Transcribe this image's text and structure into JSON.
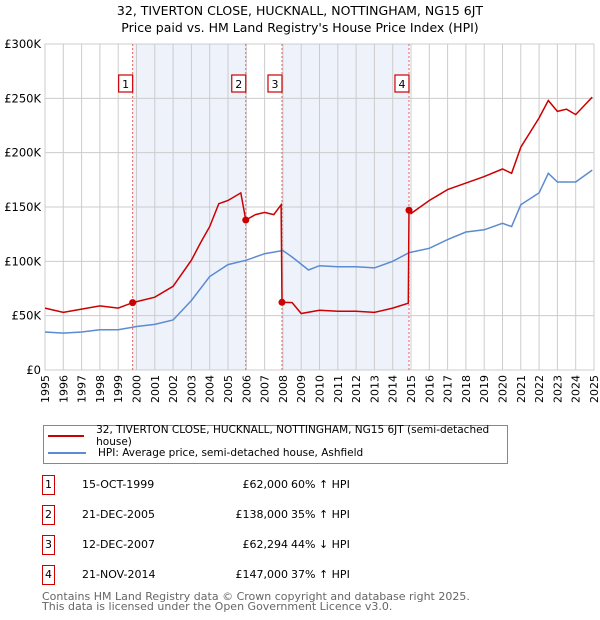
{
  "chart_data": {
    "type": "line",
    "title": "32, TIVERTON CLOSE, HUCKNALL, NOTTINGHAM, NG15 6JT",
    "subtitle": "Price paid vs. HM Land Registry's House Price Index (HPI)",
    "xlim": [
      1995,
      2025
    ],
    "ylim": [
      0,
      300000
    ],
    "x_ticks": [
      "1995",
      "1996",
      "1997",
      "1998",
      "1999",
      "2000",
      "2001",
      "2002",
      "2003",
      "2004",
      "2005",
      "2006",
      "2007",
      "2008",
      "2009",
      "2010",
      "2011",
      "2012",
      "2013",
      "2014",
      "2015",
      "2016",
      "2017",
      "2018",
      "2019",
      "2020",
      "2021",
      "2022",
      "2023",
      "2024",
      "2025"
    ],
    "y_ticks": [
      {
        "v": 0,
        "label": "£0"
      },
      {
        "v": 50000,
        "label": "£50K"
      },
      {
        "v": 100000,
        "label": "£100K"
      },
      {
        "v": 150000,
        "label": "£150K"
      },
      {
        "v": 200000,
        "label": "£200K"
      },
      {
        "v": 250000,
        "label": "£250K"
      },
      {
        "v": 300000,
        "label": "£300K"
      }
    ],
    "grid": true,
    "series": [
      {
        "name": "32, TIVERTON CLOSE, HUCKNALL, NOTTINGHAM, NG15 6JT (semi-detached house)",
        "color": "#cc0000",
        "x": [
          1995,
          1996,
          1997,
          1998,
          1999,
          1999.79,
          2001,
          2002,
          2003,
          2003.5,
          2004,
          2004.5,
          2005,
          2005.7,
          2005.97,
          2006.5,
          2007,
          2007.5,
          2007.9,
          2007.95,
          2008.5,
          2009,
          2010,
          2011,
          2012,
          2013,
          2014,
          2014.85,
          2014.89,
          2015,
          2016,
          2017,
          2018,
          2019,
          2020,
          2020.5,
          2021,
          2022,
          2022.5,
          2023,
          2023.5,
          2024,
          2024.9
        ],
        "y": [
          57000,
          53000,
          56000,
          59000,
          57000,
          62000,
          67000,
          77000,
          101000,
          117000,
          132000,
          153000,
          156000,
          163000,
          138000,
          143000,
          145000,
          143000,
          152000,
          62294,
          62000,
          52000,
          55000,
          54000,
          54000,
          53000,
          57000,
          61500,
          147000,
          144000,
          156000,
          166000,
          172000,
          178000,
          185000,
          181000,
          205000,
          232000,
          248000,
          238000,
          240000,
          235000,
          251000
        ]
      },
      {
        "name": "HPI: Average price, semi-detached house, Ashfield",
        "color": "#5b8bd0",
        "x": [
          1995,
          1996,
          1997,
          1998,
          1999,
          2000,
          2001,
          2002,
          2003,
          2004,
          2005,
          2006,
          2007,
          2008,
          2008.5,
          2009.4,
          2010,
          2011,
          2012,
          2013,
          2014,
          2014.9,
          2016,
          2017,
          2018,
          2019,
          2020,
          2020.5,
          2021,
          2022,
          2022.5,
          2023,
          2024,
          2024.9
        ],
        "y": [
          35000,
          34000,
          35000,
          37000,
          37000,
          40000,
          42000,
          46000,
          64000,
          86000,
          97000,
          101000,
          107000,
          110000,
          104000,
          92000,
          96000,
          95000,
          95000,
          94000,
          100000,
          108000,
          112000,
          120000,
          127000,
          129000,
          135000,
          132000,
          152000,
          163000,
          181000,
          173000,
          173000,
          184000
        ]
      }
    ],
    "sales": [
      {
        "n": "1",
        "x": 1999.79,
        "y": 62000
      },
      {
        "n": "2",
        "x": 2005.97,
        "y": 138000
      },
      {
        "n": "3",
        "x": 2007.95,
        "y": 62294
      },
      {
        "n": "4",
        "x": 2014.89,
        "y": 147000
      }
    ],
    "shaded": [
      [
        1999.79,
        2005.97
      ],
      [
        2007.95,
        2014.89
      ]
    ]
  },
  "header": {
    "title": "32, TIVERTON CLOSE, HUCKNALL, NOTTINGHAM, NG15 6JT",
    "subtitle": "Price paid vs. HM Land Registry's House Price Index (HPI)"
  },
  "legend": {
    "items": [
      "32, TIVERTON CLOSE, HUCKNALL, NOTTINGHAM, NG15 6JT (semi-detached house)",
      "HPI: Average price, semi-detached house, Ashfield"
    ]
  },
  "table": [
    {
      "n": "1",
      "date": "15-OCT-1999",
      "price": "£62,000",
      "hpi": "60% ↑ HPI"
    },
    {
      "n": "2",
      "date": "21-DEC-2005",
      "price": "£138,000",
      "hpi": "35% ↑ HPI"
    },
    {
      "n": "3",
      "date": "12-DEC-2007",
      "price": "£62,294",
      "hpi": "44% ↓ HPI"
    },
    {
      "n": "4",
      "date": "21-NOV-2014",
      "price": "£147,000",
      "hpi": "37% ↑ HPI"
    }
  ],
  "footer": {
    "line1": "Contains HM Land Registry data © Crown copyright and database right 2025.",
    "line2": "This data is licensed under the Open Government Licence v3.0."
  },
  "colors": {
    "red": "#cc0000",
    "blue": "#5b8bd0",
    "shade": "#eef2fb"
  }
}
